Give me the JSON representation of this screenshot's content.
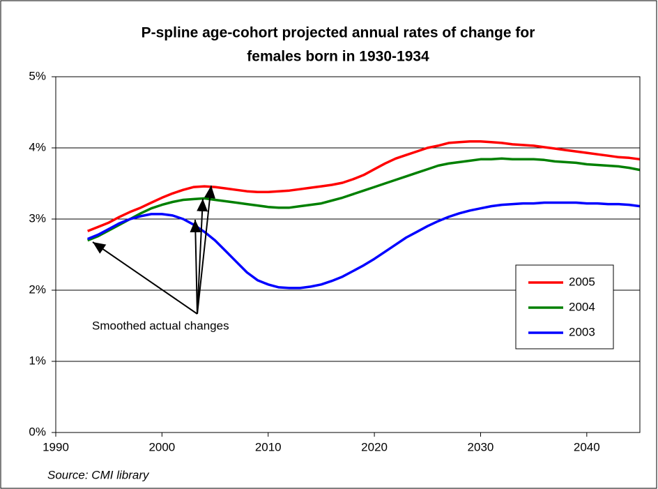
{
  "chart_data": {
    "type": "line",
    "title": "P-spline age-cohort projected annual rates of change for",
    "subtitle": "females born in 1930-1934",
    "x": [
      1993,
      1994,
      1995,
      1996,
      1997,
      1998,
      1999,
      2000,
      2001,
      2002,
      2003,
      2004,
      2005,
      2006,
      2007,
      2008,
      2009,
      2010,
      2011,
      2012,
      2013,
      2014,
      2015,
      2016,
      2017,
      2018,
      2019,
      2020,
      2021,
      2022,
      2023,
      2024,
      2025,
      2026,
      2027,
      2028,
      2029,
      2030,
      2031,
      2032,
      2033,
      2034,
      2035,
      2036,
      2037,
      2038,
      2039,
      2040,
      2041,
      2042,
      2043,
      2044,
      2045
    ],
    "series": [
      {
        "name": "2005",
        "color": "#ff0000",
        "values": [
          2.83,
          2.89,
          2.95,
          3.03,
          3.1,
          3.16,
          3.23,
          3.3,
          3.36,
          3.41,
          3.45,
          3.46,
          3.45,
          3.43,
          3.41,
          3.39,
          3.38,
          3.38,
          3.39,
          3.4,
          3.42,
          3.44,
          3.46,
          3.48,
          3.51,
          3.56,
          3.62,
          3.7,
          3.78,
          3.85,
          3.9,
          3.95,
          4.0,
          4.03,
          4.07,
          4.08,
          4.09,
          4.09,
          4.08,
          4.07,
          4.05,
          4.04,
          4.03,
          4.01,
          3.99,
          3.97,
          3.95,
          3.93,
          3.91,
          3.89,
          3.87,
          3.86,
          3.84
        ]
      },
      {
        "name": "2004",
        "color": "#008000",
        "values": [
          2.7,
          2.76,
          2.84,
          2.92,
          3.0,
          3.08,
          3.15,
          3.2,
          3.24,
          3.27,
          3.28,
          3.29,
          3.27,
          3.25,
          3.23,
          3.21,
          3.19,
          3.17,
          3.16,
          3.16,
          3.18,
          3.2,
          3.22,
          3.26,
          3.3,
          3.35,
          3.4,
          3.45,
          3.5,
          3.55,
          3.6,
          3.65,
          3.7,
          3.75,
          3.78,
          3.8,
          3.82,
          3.84,
          3.84,
          3.85,
          3.84,
          3.84,
          3.84,
          3.83,
          3.81,
          3.8,
          3.79,
          3.77,
          3.76,
          3.75,
          3.74,
          3.72,
          3.69
        ]
      },
      {
        "name": "2003",
        "color": "#0000ff",
        "values": [
          2.72,
          2.78,
          2.86,
          2.94,
          3.0,
          3.04,
          3.07,
          3.07,
          3.05,
          3.0,
          2.92,
          2.82,
          2.7,
          2.55,
          2.4,
          2.25,
          2.14,
          2.08,
          2.04,
          2.03,
          2.03,
          2.05,
          2.08,
          2.13,
          2.19,
          2.27,
          2.35,
          2.44,
          2.54,
          2.64,
          2.74,
          2.82,
          2.9,
          2.97,
          3.03,
          3.08,
          3.12,
          3.15,
          3.18,
          3.2,
          3.21,
          3.22,
          3.22,
          3.23,
          3.23,
          3.23,
          3.23,
          3.22,
          3.22,
          3.21,
          3.21,
          3.2,
          3.18
        ]
      }
    ],
    "xlim": [
      1990,
      2045
    ],
    "xticks": [
      1990,
      2000,
      2010,
      2020,
      2030,
      2040
    ],
    "ylim": [
      0,
      5
    ],
    "yticks": [
      {
        "value": 0,
        "label": "0%"
      },
      {
        "value": 1,
        "label": "1%"
      },
      {
        "value": 2,
        "label": "2%"
      },
      {
        "value": 3,
        "label": "3%"
      },
      {
        "value": 4,
        "label": "4%"
      },
      {
        "value": 5,
        "label": "5%"
      }
    ],
    "grid": true,
    "legend": "right",
    "annotation": "Smoothed actual changes",
    "source": "Source: CMI library"
  }
}
